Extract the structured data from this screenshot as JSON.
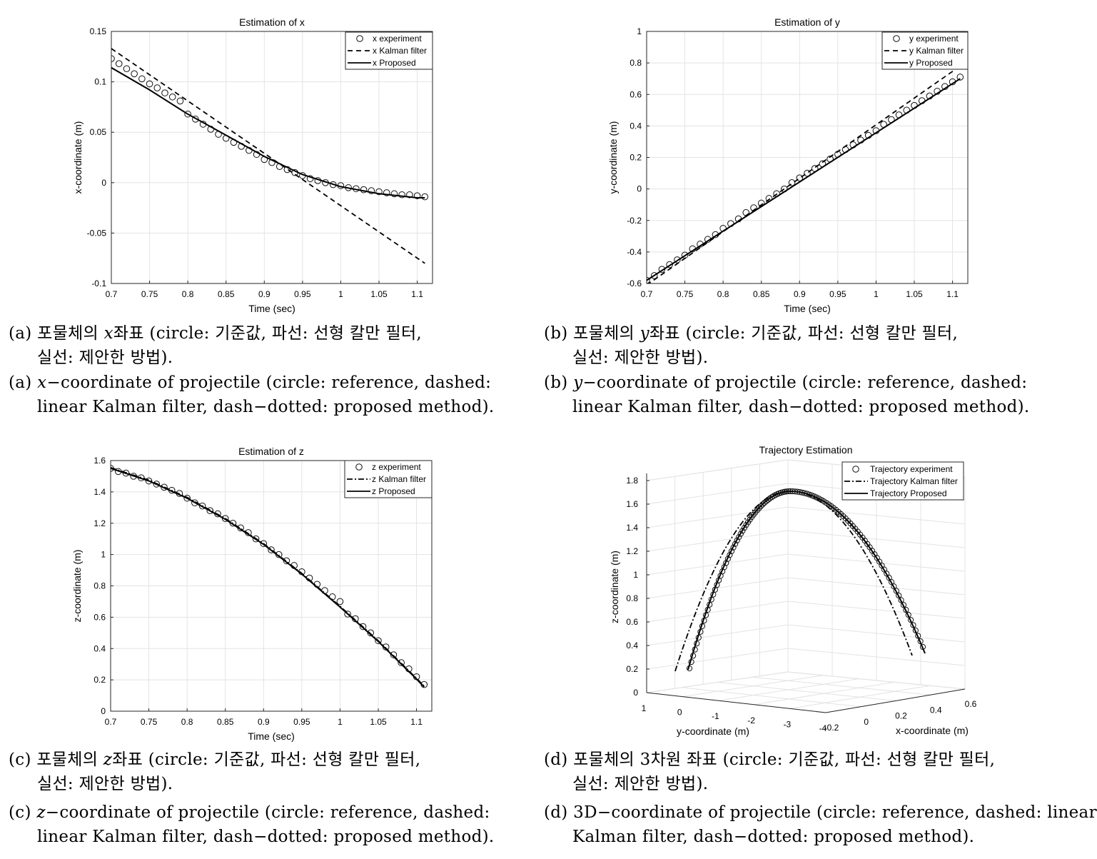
{
  "chart_data": [
    {
      "type": "line",
      "title": "Estimation of x",
      "xlabel": "Time (sec)",
      "ylabel": "x-coordinate (m)",
      "xlim": [
        0.7,
        1.12
      ],
      "ylim": [
        -0.1,
        0.15
      ],
      "xticks": [
        "0.7",
        "0.75",
        "0.8",
        "0.85",
        "0.9",
        "0.95",
        "1",
        "1.05",
        "1.1"
      ],
      "yticks": [
        "-0.1",
        "-0.05",
        "0",
        "0.05",
        "0.1",
        "0.15"
      ],
      "grid": true,
      "legend_position": "top-right",
      "series": [
        {
          "name": "x experiment",
          "style": "circle",
          "x": [
            0.7,
            0.71,
            0.72,
            0.73,
            0.74,
            0.75,
            0.76,
            0.77,
            0.78,
            0.79,
            0.8,
            0.81,
            0.82,
            0.83,
            0.84,
            0.85,
            0.86,
            0.87,
            0.88,
            0.89,
            0.9,
            0.91,
            0.92,
            0.93,
            0.94,
            0.95,
            0.96,
            0.97,
            0.98,
            0.99,
            1.0,
            1.01,
            1.02,
            1.03,
            1.04,
            1.05,
            1.06,
            1.07,
            1.08,
            1.09,
            1.1,
            1.11
          ],
          "y": [
            0.123,
            0.118,
            0.113,
            0.108,
            0.103,
            0.098,
            0.094,
            0.089,
            0.085,
            0.081,
            0.068,
            0.063,
            0.058,
            0.053,
            0.048,
            0.044,
            0.04,
            0.036,
            0.032,
            0.028,
            0.023,
            0.02,
            0.016,
            0.013,
            0.01,
            0.007,
            0.004,
            0.002,
            0.0,
            -0.002,
            -0.003,
            -0.005,
            -0.006,
            -0.007,
            -0.008,
            -0.009,
            -0.01,
            -0.011,
            -0.012,
            -0.012,
            -0.013,
            -0.014
          ]
        },
        {
          "name": "x Kalman filter",
          "style": "dashed",
          "x": [
            0.7,
            1.11
          ],
          "y": [
            0.133,
            -0.08
          ]
        },
        {
          "name": "x Proposed",
          "style": "solid",
          "x": [
            0.7,
            0.75,
            0.8,
            0.85,
            0.9,
            0.95,
            1.0,
            1.05,
            1.1,
            1.11
          ],
          "y": [
            0.114,
            0.092,
            0.068,
            0.047,
            0.026,
            0.008,
            -0.004,
            -0.011,
            -0.015,
            -0.015
          ]
        }
      ]
    },
    {
      "type": "line",
      "title": "Estimation of y",
      "xlabel": "Time (sec)",
      "ylabel": "y-coordinate (m)",
      "xlim": [
        0.7,
        1.12
      ],
      "ylim": [
        -0.6,
        1.0
      ],
      "xticks": [
        "0.7",
        "0.75",
        "0.8",
        "0.85",
        "0.9",
        "0.95",
        "1",
        "1.05",
        "1.1"
      ],
      "yticks": [
        "-0.6",
        "-0.4",
        "-0.2",
        "0",
        "0.2",
        "0.4",
        "0.6",
        "0.8",
        "1"
      ],
      "grid": true,
      "legend_position": "top-right",
      "series": [
        {
          "name": "y experiment",
          "style": "circle",
          "x": [
            0.7,
            0.71,
            0.72,
            0.73,
            0.74,
            0.75,
            0.76,
            0.77,
            0.78,
            0.79,
            0.8,
            0.81,
            0.82,
            0.83,
            0.84,
            0.85,
            0.86,
            0.87,
            0.88,
            0.89,
            0.9,
            0.91,
            0.92,
            0.93,
            0.94,
            0.95,
            0.96,
            0.97,
            0.98,
            0.99,
            1.0,
            1.01,
            1.02,
            1.03,
            1.04,
            1.05,
            1.06,
            1.07,
            1.08,
            1.09,
            1.1,
            1.11
          ],
          "y": [
            -0.58,
            -0.55,
            -0.51,
            -0.48,
            -0.45,
            -0.42,
            -0.38,
            -0.35,
            -0.32,
            -0.29,
            -0.25,
            -0.22,
            -0.19,
            -0.15,
            -0.12,
            -0.09,
            -0.06,
            -0.03,
            0.0,
            0.04,
            0.07,
            0.1,
            0.13,
            0.16,
            0.19,
            0.22,
            0.25,
            0.28,
            0.31,
            0.34,
            0.37,
            0.41,
            0.44,
            0.47,
            0.5,
            0.53,
            0.56,
            0.59,
            0.62,
            0.65,
            0.68,
            0.71
          ]
        },
        {
          "name": "y Kalman filter",
          "style": "dashed",
          "x": [
            0.7,
            1.11
          ],
          "y": [
            -0.61,
            0.78
          ]
        },
        {
          "name": "y Proposed",
          "style": "solid",
          "x": [
            0.7,
            1.11
          ],
          "y": [
            -0.58,
            0.7
          ]
        }
      ]
    },
    {
      "type": "line",
      "title": "Estimation of z",
      "xlabel": "Time (sec)",
      "ylabel": "z-coordinate (m)",
      "xlim": [
        0.7,
        1.12
      ],
      "ylim": [
        0,
        1.6
      ],
      "xticks": [
        "0.7",
        "0.75",
        "0.8",
        "0.85",
        "0.9",
        "0.95",
        "1",
        "1.05",
        "1.1"
      ],
      "yticks": [
        "0",
        "0.2",
        "0.4",
        "0.6",
        "0.8",
        "1",
        "1.2",
        "1.4",
        "1.6"
      ],
      "grid": true,
      "legend_position": "top-right",
      "series": [
        {
          "name": "z experiment",
          "style": "circle",
          "x": [
            0.7,
            0.71,
            0.72,
            0.73,
            0.74,
            0.75,
            0.76,
            0.77,
            0.78,
            0.79,
            0.8,
            0.81,
            0.82,
            0.83,
            0.84,
            0.85,
            0.86,
            0.87,
            0.88,
            0.89,
            0.9,
            0.91,
            0.92,
            0.93,
            0.94,
            0.95,
            0.96,
            0.97,
            0.98,
            0.99,
            1.0,
            1.01,
            1.02,
            1.03,
            1.04,
            1.05,
            1.06,
            1.07,
            1.08,
            1.09,
            1.1,
            1.11
          ],
          "y": [
            1.55,
            1.53,
            1.52,
            1.5,
            1.49,
            1.47,
            1.45,
            1.43,
            1.41,
            1.39,
            1.36,
            1.33,
            1.31,
            1.28,
            1.26,
            1.23,
            1.2,
            1.17,
            1.14,
            1.1,
            1.07,
            1.03,
            1.0,
            0.96,
            0.93,
            0.89,
            0.85,
            0.81,
            0.77,
            0.73,
            0.7,
            0.62,
            0.59,
            0.54,
            0.5,
            0.45,
            0.41,
            0.36,
            0.31,
            0.27,
            0.22,
            0.17
          ]
        },
        {
          "name": "z Kalman filter",
          "style": "dash-dot",
          "x": [
            0.7,
            0.75,
            0.8,
            0.85,
            0.9,
            0.95,
            1.0,
            1.05,
            1.1,
            1.11
          ],
          "y": [
            1.555,
            1.475,
            1.365,
            1.23,
            1.07,
            0.88,
            0.67,
            0.45,
            0.21,
            0.16
          ]
        },
        {
          "name": "z Proposed",
          "style": "solid",
          "x": [
            0.7,
            0.75,
            0.8,
            0.85,
            0.9,
            0.95,
            1.0,
            1.05,
            1.1,
            1.11
          ],
          "y": [
            1.55,
            1.47,
            1.36,
            1.225,
            1.065,
            0.875,
            0.665,
            0.445,
            0.205,
            0.155
          ]
        }
      ]
    },
    {
      "type": "line",
      "title": "Trajectory Estimation",
      "xlabel": "x-coordinate (m)",
      "ylabel": "z-coordinate (m)",
      "zlabel": "y-coordinate (m)",
      "view": "3d",
      "zlim": [
        0,
        1.8
      ],
      "zticks": [
        "0",
        "0.2",
        "0.4",
        "0.6",
        "0.8",
        "1",
        "1.2",
        "1.4",
        "1.6",
        "1.8"
      ],
      "yticks_3d": [
        "1",
        "0",
        "-1",
        "-2",
        "-3",
        "-4"
      ],
      "xticks_3d": [
        "-0.2",
        "0",
        "0.2",
        "0.4",
        "0.6"
      ],
      "grid": true,
      "legend_position": "top-right",
      "series": [
        {
          "name": "Trajectory experiment",
          "style": "circle"
        },
        {
          "name": "Trajectory Kalman filter",
          "style": "dash-dot"
        },
        {
          "name": "Trajectory Proposed",
          "style": "solid"
        }
      ]
    }
  ],
  "captions": {
    "a_ko": "(a) 포물체의 ",
    "a_var": "x",
    "a_ko_rest": "좌표 (circle: 기준값, 파선: 선형 칼만 필터,",
    "a_ko_2": "실선: 제안한 방법).",
    "a_en_pre": "(a) ",
    "a_en_var": "x",
    "a_en": "−coordinate of projectile (circle: reference, dashed:",
    "a_en_2": "linear Kalman filter, dash−dotted: proposed method).",
    "b_ko": "(b) 포물체의 ",
    "b_var": "y",
    "b_ko_rest": "좌표 (circle: 기준값, 파선: 선형 칼만 필터,",
    "b_ko_2": "실선: 제안한 방법).",
    "b_en_pre": "(b) ",
    "b_en_var": "y",
    "b_en": "−coordinate of projectile (circle: reference, dashed:",
    "b_en_2": "linear Kalman filter, dash−dotted: proposed method).",
    "c_ko": "(c) 포물체의 ",
    "c_var": "z",
    "c_ko_rest": "좌표 (circle: 기준값, 파선: 선형 칼만 필터,",
    "c_ko_2": "실선: 제안한 방법).",
    "c_en_pre": "(c) ",
    "c_en_var": "z",
    "c_en": "−coordinate of projectile (circle: reference, dashed:",
    "c_en_2": "linear Kalman filter, dash−dotted: proposed method).",
    "d_ko": "(d) 포물체의 3차원 좌표 (circle: 기준값, 파선: 선형 칼만 필터,",
    "d_ko_2": "실선: 제안한 방법).",
    "d_en": "(d) 3D−coordinate of projectile (circle: reference, dashed: linear",
    "d_en_2": "Kalman filter, dash−dotted: proposed method)."
  }
}
